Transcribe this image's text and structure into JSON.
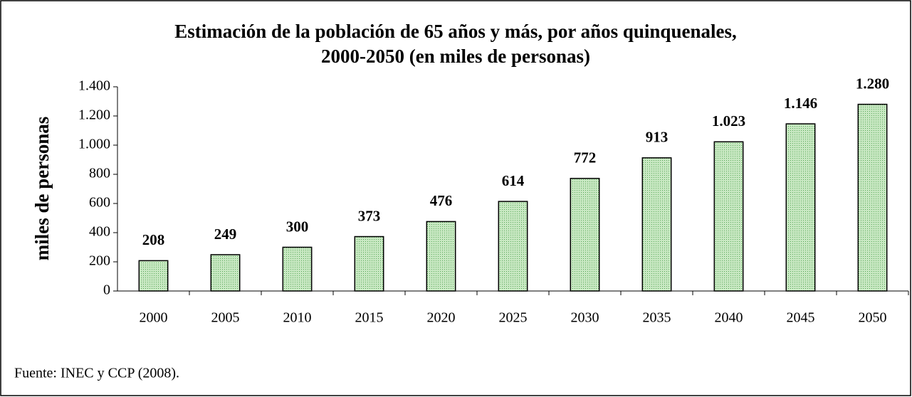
{
  "chart_data": {
    "type": "bar",
    "title": "Estimación de la población de 65 años y más, por años quinquenales,",
    "subtitle": "2000-2050 (en miles de personas)",
    "y_label": "miles de personas",
    "source": "Fuente: INEC y CCP (2008).",
    "categories": [
      "2000",
      "2005",
      "2010",
      "2015",
      "2020",
      "2025",
      "2030",
      "2035",
      "2040",
      "2045",
      "2050"
    ],
    "values": [
      208,
      249,
      300,
      373,
      476,
      614,
      772,
      913,
      1023,
      1146,
      1280
    ],
    "value_labels": [
      "208",
      "249",
      "300",
      "373",
      "476",
      "614",
      "772",
      "913",
      "1.023",
      "1.146",
      "1.280"
    ],
    "color": "#b2dcab",
    "ylim": [
      0,
      1400
    ],
    "yticks": [
      0,
      200,
      400,
      600,
      800,
      {
        "value": 1000,
        "label": "1.000"
      },
      {
        "value": 1200,
        "label": "1.200"
      },
      {
        "value": 1400,
        "label": "1.400"
      }
    ],
    "grid": false
  }
}
